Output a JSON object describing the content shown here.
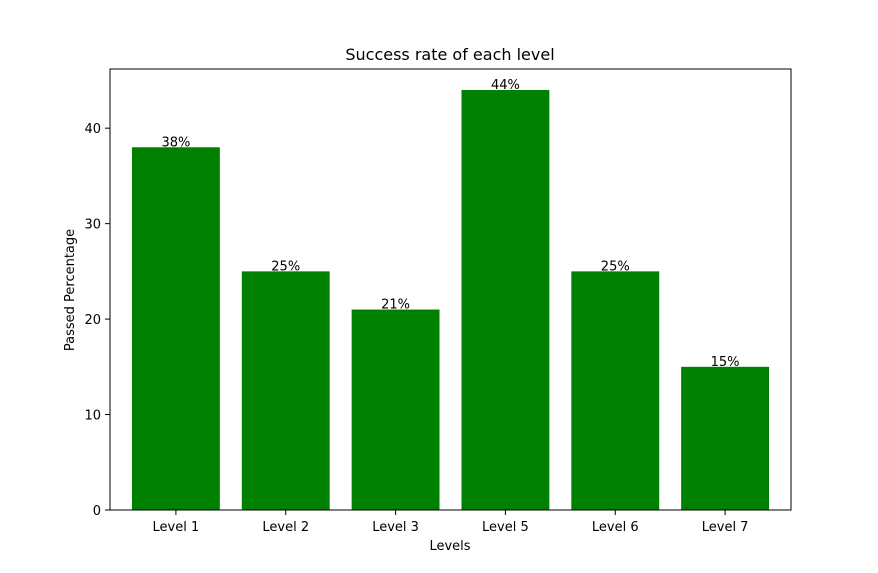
{
  "chart_data": {
    "type": "bar",
    "title": "Success rate of each level",
    "xlabel": "Levels",
    "ylabel": "Passed Percentage",
    "categories": [
      "Level 1",
      "Level 2",
      "Level 3",
      "Level 5",
      "Level 6",
      "Level 7"
    ],
    "values": [
      38,
      25,
      21,
      44,
      25,
      15
    ],
    "data_labels": [
      "38%",
      "25%",
      "21%",
      "44%",
      "25%",
      "15%"
    ],
    "ylim": [
      0,
      46.2
    ],
    "yticks": [
      0,
      10,
      20,
      30,
      40
    ],
    "ytick_labels": [
      "0",
      "10",
      "20",
      "30",
      "40"
    ],
    "bar_color": "#008000",
    "grid": false,
    "legend": "none"
  }
}
